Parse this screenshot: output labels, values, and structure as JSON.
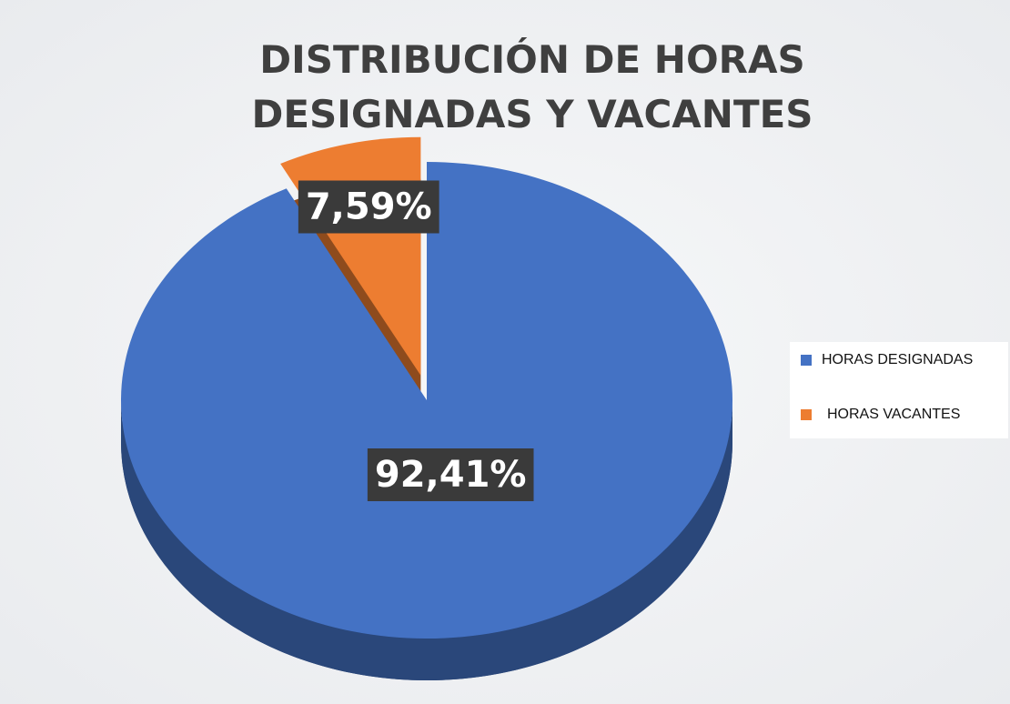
{
  "chart_data": {
    "type": "pie",
    "title": "DISTRIBUCIÓN DE HORAS DESIGNADAS Y VACANTES",
    "categories": [
      "HORAS DESIGNADAS",
      "HORAS VACANTES"
    ],
    "values": [
      92.41,
      7.59
    ],
    "value_labels": [
      "92,41%",
      "7,59%"
    ],
    "colors": [
      "#4472c4",
      "#ed7d31"
    ],
    "legend": "right"
  }
}
